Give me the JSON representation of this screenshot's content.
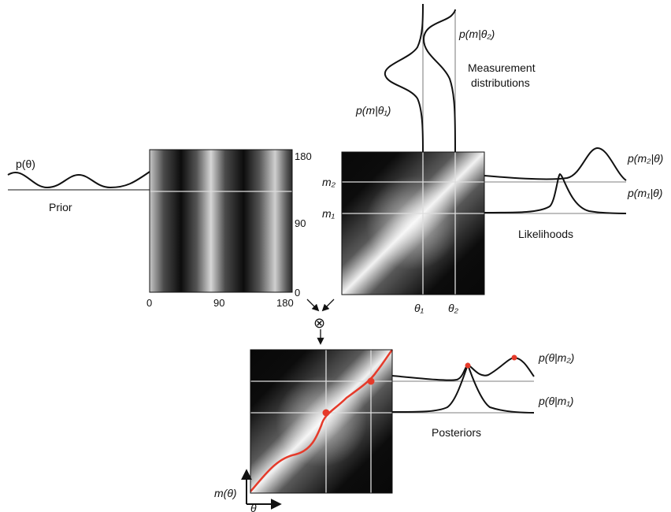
{
  "colors": {
    "curve": "#111111",
    "grid_line": "#dddddd",
    "map_line": "#e53a2a",
    "background": "#ffffff"
  },
  "prior": {
    "label": "Prior",
    "formula": "p(θ)",
    "x_ticks": [
      "0",
      "90",
      "180"
    ],
    "y_ticks": [
      "180",
      "90",
      "0"
    ]
  },
  "likelihood_panel": {
    "y_marks": {
      "m2": "m₂",
      "m1": "m₁"
    },
    "x_marks": {
      "t1": "θ₁",
      "t2": "θ₂"
    },
    "measurement": {
      "title_line1": "Measurement",
      "title_line2": "distributions",
      "label_t1": "p(m|θ₁)",
      "label_t2": "p(m|θ₂)"
    },
    "likelihoods": {
      "title": "Likelihoods",
      "label_m2": "p(m₂|θ)",
      "label_m1": "p(m₁|θ)"
    }
  },
  "combine": {
    "symbol": "⊗"
  },
  "posterior_panel": {
    "title": "Posteriors",
    "label_m2": "p(θ|m₂)",
    "label_m1": "p(θ|m₁)",
    "axis_y": "m(θ)",
    "axis_x": "θ"
  }
}
